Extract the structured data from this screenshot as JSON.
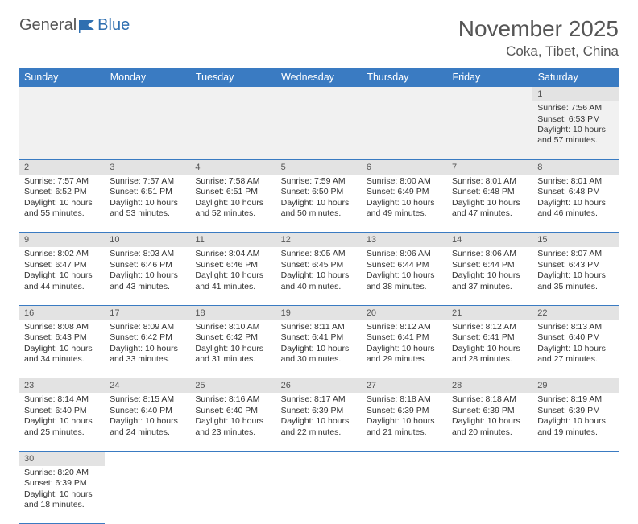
{
  "logo": {
    "text1": "General",
    "text2": "Blue"
  },
  "title": "November 2025",
  "location": "Coka, Tibet, China",
  "colors": {
    "header_bg": "#3a7bc2",
    "header_text": "#ffffff",
    "daynum_bg": "#e3e3e3",
    "cell_border": "#3a7bc2",
    "body_text": "#333333",
    "title_text": "#555555",
    "logo_blue": "#2f6fb0"
  },
  "weekdays": [
    "Sunday",
    "Monday",
    "Tuesday",
    "Wednesday",
    "Thursday",
    "Friday",
    "Saturday"
  ],
  "labels": {
    "sunrise": "Sunrise:",
    "sunset": "Sunset:",
    "daylight": "Daylight:"
  },
  "weeks": [
    [
      null,
      null,
      null,
      null,
      null,
      null,
      {
        "n": "1",
        "sr": "7:56 AM",
        "ss": "6:53 PM",
        "dl": "10 hours and 57 minutes."
      }
    ],
    [
      {
        "n": "2",
        "sr": "7:57 AM",
        "ss": "6:52 PM",
        "dl": "10 hours and 55 minutes."
      },
      {
        "n": "3",
        "sr": "7:57 AM",
        "ss": "6:51 PM",
        "dl": "10 hours and 53 minutes."
      },
      {
        "n": "4",
        "sr": "7:58 AM",
        "ss": "6:51 PM",
        "dl": "10 hours and 52 minutes."
      },
      {
        "n": "5",
        "sr": "7:59 AM",
        "ss": "6:50 PM",
        "dl": "10 hours and 50 minutes."
      },
      {
        "n": "6",
        "sr": "8:00 AM",
        "ss": "6:49 PM",
        "dl": "10 hours and 49 minutes."
      },
      {
        "n": "7",
        "sr": "8:01 AM",
        "ss": "6:48 PM",
        "dl": "10 hours and 47 minutes."
      },
      {
        "n": "8",
        "sr": "8:01 AM",
        "ss": "6:48 PM",
        "dl": "10 hours and 46 minutes."
      }
    ],
    [
      {
        "n": "9",
        "sr": "8:02 AM",
        "ss": "6:47 PM",
        "dl": "10 hours and 44 minutes."
      },
      {
        "n": "10",
        "sr": "8:03 AM",
        "ss": "6:46 PM",
        "dl": "10 hours and 43 minutes."
      },
      {
        "n": "11",
        "sr": "8:04 AM",
        "ss": "6:46 PM",
        "dl": "10 hours and 41 minutes."
      },
      {
        "n": "12",
        "sr": "8:05 AM",
        "ss": "6:45 PM",
        "dl": "10 hours and 40 minutes."
      },
      {
        "n": "13",
        "sr": "8:06 AM",
        "ss": "6:44 PM",
        "dl": "10 hours and 38 minutes."
      },
      {
        "n": "14",
        "sr": "8:06 AM",
        "ss": "6:44 PM",
        "dl": "10 hours and 37 minutes."
      },
      {
        "n": "15",
        "sr": "8:07 AM",
        "ss": "6:43 PM",
        "dl": "10 hours and 35 minutes."
      }
    ],
    [
      {
        "n": "16",
        "sr": "8:08 AM",
        "ss": "6:43 PM",
        "dl": "10 hours and 34 minutes."
      },
      {
        "n": "17",
        "sr": "8:09 AM",
        "ss": "6:42 PM",
        "dl": "10 hours and 33 minutes."
      },
      {
        "n": "18",
        "sr": "8:10 AM",
        "ss": "6:42 PM",
        "dl": "10 hours and 31 minutes."
      },
      {
        "n": "19",
        "sr": "8:11 AM",
        "ss": "6:41 PM",
        "dl": "10 hours and 30 minutes."
      },
      {
        "n": "20",
        "sr": "8:12 AM",
        "ss": "6:41 PM",
        "dl": "10 hours and 29 minutes."
      },
      {
        "n": "21",
        "sr": "8:12 AM",
        "ss": "6:41 PM",
        "dl": "10 hours and 28 minutes."
      },
      {
        "n": "22",
        "sr": "8:13 AM",
        "ss": "6:40 PM",
        "dl": "10 hours and 27 minutes."
      }
    ],
    [
      {
        "n": "23",
        "sr": "8:14 AM",
        "ss": "6:40 PM",
        "dl": "10 hours and 25 minutes."
      },
      {
        "n": "24",
        "sr": "8:15 AM",
        "ss": "6:40 PM",
        "dl": "10 hours and 24 minutes."
      },
      {
        "n": "25",
        "sr": "8:16 AM",
        "ss": "6:40 PM",
        "dl": "10 hours and 23 minutes."
      },
      {
        "n": "26",
        "sr": "8:17 AM",
        "ss": "6:39 PM",
        "dl": "10 hours and 22 minutes."
      },
      {
        "n": "27",
        "sr": "8:18 AM",
        "ss": "6:39 PM",
        "dl": "10 hours and 21 minutes."
      },
      {
        "n": "28",
        "sr": "8:18 AM",
        "ss": "6:39 PM",
        "dl": "10 hours and 20 minutes."
      },
      {
        "n": "29",
        "sr": "8:19 AM",
        "ss": "6:39 PM",
        "dl": "10 hours and 19 minutes."
      }
    ],
    [
      {
        "n": "30",
        "sr": "8:20 AM",
        "ss": "6:39 PM",
        "dl": "10 hours and 18 minutes."
      },
      null,
      null,
      null,
      null,
      null,
      null
    ]
  ]
}
